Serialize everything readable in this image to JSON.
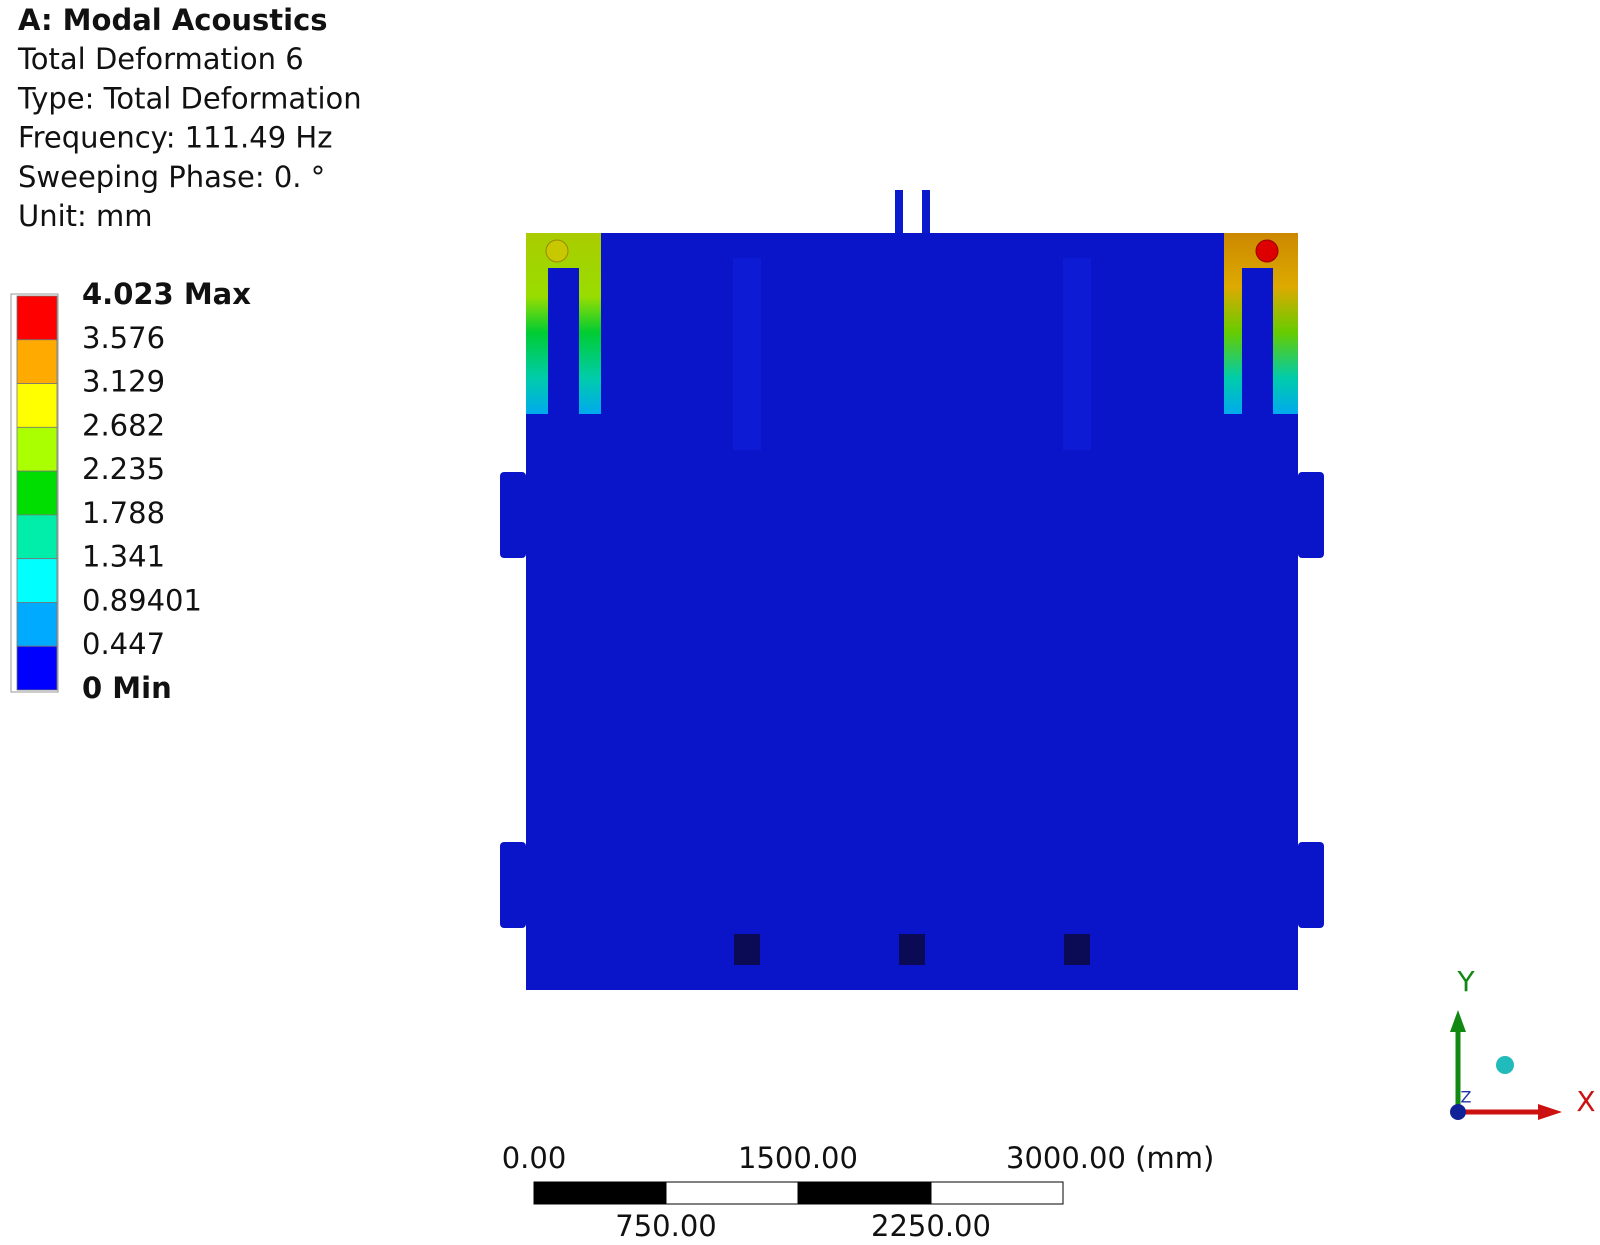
{
  "header": {
    "lines": [
      "A: Modal Acoustics",
      "Total Deformation 6",
      "Type: Total Deformation",
      "Frequency: 111.49 Hz",
      "Sweeping Phase: 0. °",
      "Unit: mm"
    ]
  },
  "legend": {
    "labels": [
      "4.023 Max",
      "3.576",
      "3.129",
      "2.682",
      "2.235",
      "1.788",
      "1.341",
      "0.89401",
      "0.447",
      "0 Min"
    ],
    "colors": [
      "#ff0000",
      "#ffaa00",
      "#ffff00",
      "#aaff00",
      "#00dd00",
      "#00eeaa",
      "#00ffff",
      "#00aaff",
      "#0000ff"
    ]
  },
  "scale_bar": {
    "top_labels": [
      "0.00",
      "1500.00",
      "3000.00 (mm)"
    ],
    "bottom_labels": [
      "750.00",
      "2250.00"
    ]
  },
  "triad": {
    "y_label": "Y",
    "x_label": "X",
    "z_label": "Z"
  }
}
